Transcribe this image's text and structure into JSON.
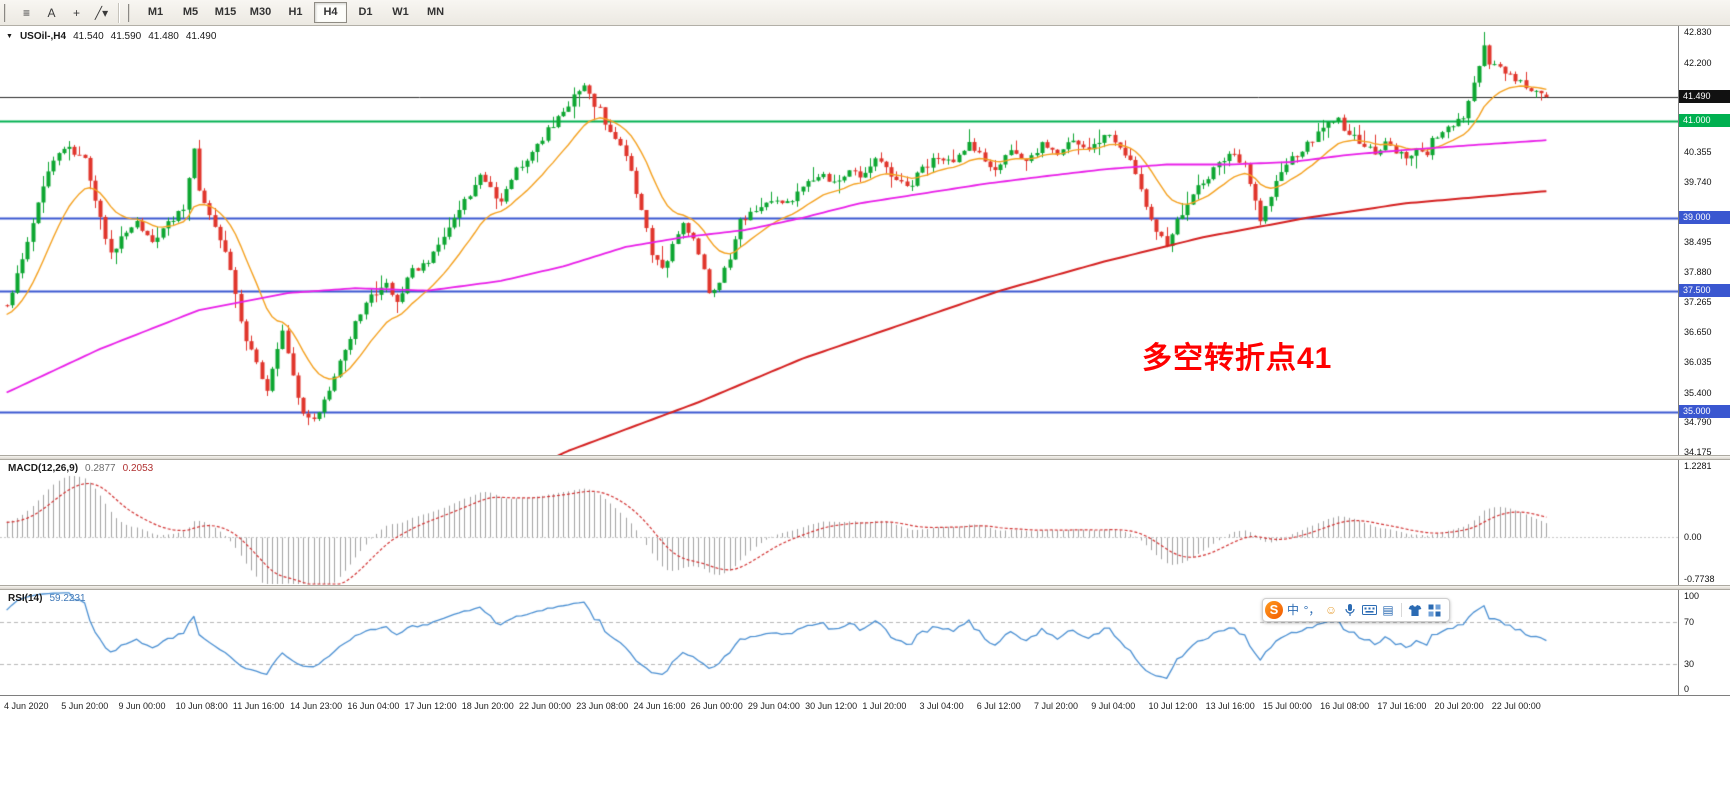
{
  "toolbar": {
    "tools": [
      {
        "name": "charts-bar",
        "glyph": "≡"
      },
      {
        "name": "text-annotation",
        "glyph": "A"
      },
      {
        "name": "crosshair",
        "glyph": "+"
      },
      {
        "name": "line-studies",
        "glyph": "╱▾"
      }
    ],
    "timeframes": [
      {
        "label": "M1"
      },
      {
        "label": "M5"
      },
      {
        "label": "M15"
      },
      {
        "label": "M30"
      },
      {
        "label": "H1"
      },
      {
        "label": "H4",
        "active": true
      },
      {
        "label": "D1"
      },
      {
        "label": "W1"
      },
      {
        "label": "MN"
      }
    ]
  },
  "ime": {
    "logo": "S",
    "items": [
      {
        "name": "lang",
        "glyph": "中"
      },
      {
        "name": "punctuation",
        "glyph": "°，"
      },
      {
        "name": "emoji",
        "glyph": "☺"
      },
      {
        "name": "microphone",
        "glyph": ""
      },
      {
        "name": "keyboard",
        "glyph": ""
      },
      {
        "name": "handwriting",
        "glyph": "▤"
      },
      {
        "name": "skin",
        "glyph": ""
      },
      {
        "name": "toolbox",
        "glyph": ""
      }
    ]
  },
  "chart_data": {
    "type": "candlestick",
    "symbol": "USOil-,H4",
    "symbol_marker": "▼",
    "timeframe": "H4",
    "ohlc": {
      "open": "41.540",
      "high": "41.590",
      "low": "41.480",
      "close": "41.490"
    },
    "current_price": 41.49,
    "price_range": [
      34.175,
      42.83
    ],
    "candle_count": 297,
    "seed": 9,
    "up_color": "#0da631",
    "down_color": "#e0352c",
    "close_waypoints": [
      [
        0,
        37.2
      ],
      [
        4,
        38.5
      ],
      [
        8,
        40.0
      ],
      [
        11,
        40.45
      ],
      [
        15,
        40.3
      ],
      [
        17,
        39.3
      ],
      [
        20,
        38.3
      ],
      [
        23,
        38.7
      ],
      [
        25,
        38.9
      ],
      [
        28,
        38.5
      ],
      [
        31,
        38.9
      ],
      [
        34,
        39.2
      ],
      [
        36,
        40.35
      ],
      [
        37,
        39.5
      ],
      [
        40,
        38.8
      ],
      [
        43,
        38.0
      ],
      [
        45,
        36.8
      ],
      [
        48,
        36.0
      ],
      [
        50,
        35.4
      ],
      [
        52,
        36.3
      ],
      [
        53,
        36.6
      ],
      [
        55,
        35.7
      ],
      [
        57,
        35.0
      ],
      [
        59,
        34.85
      ],
      [
        61,
        35.2
      ],
      [
        64,
        36.0
      ],
      [
        67,
        36.8
      ],
      [
        70,
        37.4
      ],
      [
        73,
        37.6
      ],
      [
        75,
        37.3
      ],
      [
        78,
        37.9
      ],
      [
        81,
        38.1
      ],
      [
        83,
        38.5
      ],
      [
        86,
        39.0
      ],
      [
        89,
        39.5
      ],
      [
        91,
        39.9
      ],
      [
        93,
        39.6
      ],
      [
        95,
        39.3
      ],
      [
        98,
        40.0
      ],
      [
        101,
        40.3
      ],
      [
        104,
        40.8
      ],
      [
        107,
        41.2
      ],
      [
        109,
        41.5
      ],
      [
        111,
        41.65
      ],
      [
        114,
        41.2
      ],
      [
        117,
        40.6
      ],
      [
        119,
        40.3
      ],
      [
        122,
        39.2
      ],
      [
        124,
        38.3
      ],
      [
        126,
        37.9
      ],
      [
        128,
        38.4
      ],
      [
        130,
        38.9
      ],
      [
        133,
        38.3
      ],
      [
        135,
        37.5
      ],
      [
        137,
        37.6
      ],
      [
        139,
        38.2
      ],
      [
        141,
        38.9
      ],
      [
        144,
        39.2
      ],
      [
        147,
        39.4
      ],
      [
        150,
        39.3
      ],
      [
        153,
        39.6
      ],
      [
        156,
        39.9
      ],
      [
        159,
        39.7
      ],
      [
        162,
        40.0
      ],
      [
        164,
        39.9
      ],
      [
        167,
        40.2
      ],
      [
        170,
        39.9
      ],
      [
        173,
        39.6
      ],
      [
        176,
        40.0
      ],
      [
        179,
        40.3
      ],
      [
        182,
        40.1
      ],
      [
        185,
        40.5
      ],
      [
        188,
        40.2
      ],
      [
        190,
        40.0
      ],
      [
        193,
        40.4
      ],
      [
        196,
        40.2
      ],
      [
        199,
        40.5
      ],
      [
        202,
        40.3
      ],
      [
        205,
        40.6
      ],
      [
        208,
        40.4
      ],
      [
        211,
        40.7
      ],
      [
        214,
        40.5
      ],
      [
        216,
        40.2
      ],
      [
        218,
        39.6
      ],
      [
        220,
        39.0
      ],
      [
        223,
        38.35
      ],
      [
        225,
        38.9
      ],
      [
        227,
        39.3
      ],
      [
        229,
        39.6
      ],
      [
        232,
        40.0
      ],
      [
        235,
        40.3
      ],
      [
        238,
        40.1
      ],
      [
        240,
        39.4
      ],
      [
        241,
        39.0
      ],
      [
        243,
        39.5
      ],
      [
        245,
        40.0
      ],
      [
        247,
        40.2
      ],
      [
        250,
        40.5
      ],
      [
        253,
        40.9
      ],
      [
        256,
        41.0
      ],
      [
        258,
        40.7
      ],
      [
        261,
        40.5
      ],
      [
        263,
        40.3
      ],
      [
        265,
        40.6
      ],
      [
        267,
        40.4
      ],
      [
        269,
        40.2
      ],
      [
        271,
        40.5
      ],
      [
        273,
        40.3
      ],
      [
        274,
        40.6
      ],
      [
        276,
        40.8
      ],
      [
        278,
        40.9
      ],
      [
        280,
        41.1
      ],
      [
        282,
        41.8
      ],
      [
        284,
        42.5
      ],
      [
        285,
        42.2
      ],
      [
        287,
        42.1
      ],
      [
        289,
        41.9
      ],
      [
        291,
        41.8
      ],
      [
        293,
        41.6
      ],
      [
        296,
        41.49
      ]
    ],
    "ma_lines": [
      {
        "name": "ma-fast",
        "color": "#f4a120",
        "type": "ema",
        "period": 14,
        "width": 1.4
      },
      {
        "name": "ma-mid",
        "color": "#e81ee8",
        "type": "path",
        "width": 1.8,
        "waypoints": [
          [
            0,
            35.4
          ],
          [
            18,
            36.3
          ],
          [
            37,
            37.1
          ],
          [
            54,
            37.45
          ],
          [
            67,
            37.55
          ],
          [
            81,
            37.5
          ],
          [
            95,
            37.7
          ],
          [
            107,
            38.0
          ],
          [
            119,
            38.4
          ],
          [
            130,
            38.6
          ],
          [
            142,
            38.75
          ],
          [
            153,
            39.0
          ],
          [
            164,
            39.3
          ],
          [
            176,
            39.5
          ],
          [
            188,
            39.7
          ],
          [
            199,
            39.85
          ],
          [
            211,
            40.0
          ],
          [
            223,
            40.1
          ],
          [
            235,
            40.1
          ],
          [
            247,
            40.15
          ],
          [
            258,
            40.3
          ],
          [
            269,
            40.4
          ],
          [
            282,
            40.5
          ],
          [
            296,
            40.6
          ]
        ]
      },
      {
        "name": "ma-slow",
        "color": "#d42020",
        "type": "path",
        "width": 2,
        "waypoints": [
          [
            80,
            32.8
          ],
          [
            108,
            34.2
          ],
          [
            133,
            35.2
          ],
          [
            153,
            36.1
          ],
          [
            172,
            36.8
          ],
          [
            191,
            37.5
          ],
          [
            211,
            38.1
          ],
          [
            230,
            38.6
          ],
          [
            250,
            39.0
          ],
          [
            269,
            39.3
          ],
          [
            296,
            39.55
          ]
        ]
      }
    ],
    "hlines": [
      {
        "price": 41.0,
        "color": "#00b050",
        "width": 2,
        "label": "41.000"
      },
      {
        "price": 39.0,
        "color": "#3a57d0",
        "width": 2,
        "label": "39.000"
      },
      {
        "price": 37.5,
        "color": "#3a57d0",
        "width": 2,
        "label": "37.500"
      },
      {
        "price": 35.0,
        "color": "#3a57d0",
        "width": 2,
        "label": "35.000"
      }
    ],
    "bid_line": {
      "price": 41.49,
      "color": "#2a2a2a",
      "width": 1,
      "label": "41.490",
      "label_bg": "#111111"
    },
    "price_ticks": [
      "42.830",
      "42.200",
      "40.355",
      "39.740",
      "38.495",
      "37.880",
      "37.265",
      "36.650",
      "36.035",
      "35.400",
      "34.790",
      "34.175"
    ],
    "time_axis": [
      "4 Jun 2020",
      "5 Jun 20:00",
      "9 Jun 00:00",
      "10 Jun 08:00",
      "11 Jun 16:00",
      "14 Jun 23:00",
      "16 Jun 04:00",
      "17 Jun 12:00",
      "18 Jun 20:00",
      "22 Jun 00:00",
      "23 Jun 08:00",
      "24 Jun 16:00",
      "26 Jun 00:00",
      "29 Jun 04:00",
      "30 Jun 12:00",
      "1 Jul 20:00",
      "3 Jul 04:00",
      "6 Jul 12:00",
      "7 Jul 20:00",
      "9 Jul 04:00",
      "10 Jul 12:00",
      "13 Jul 16:00",
      "15 Jul 00:00",
      "16 Jul 08:00",
      "17 Jul 16:00",
      "20 Jul 20:00",
      "22 Jul 00:00"
    ],
    "annotation": {
      "text": "多空转折点41",
      "color": "#ff0000"
    },
    "indicators": {
      "macd": {
        "label": "MACD(12,26,9)",
        "value_main": "0.2877",
        "value_signal": "0.2053",
        "fast": 12,
        "slow": 26,
        "signal": 9,
        "scale_max": 1.2281,
        "scale_min": -0.7738,
        "scale_labels": [
          "1.2281",
          "0.00",
          "-0.7738"
        ],
        "hist_color": "#a2a2a2",
        "signal_color": "#d23434",
        "zero_color": "#c6c6c6"
      },
      "rsi": {
        "label": "RSI(14)",
        "value": "59.2231",
        "period": 14,
        "levels": [
          70,
          30
        ],
        "scale_labels": [
          "100",
          "70",
          "30",
          "0"
        ],
        "line_color": "#4a8fd2",
        "level_color": "#b6b6b6"
      }
    }
  }
}
